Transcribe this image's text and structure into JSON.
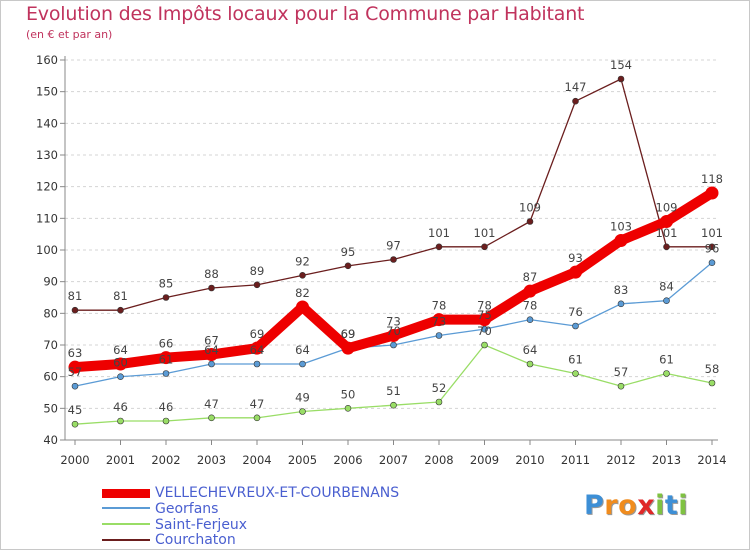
{
  "chart_data": {
    "type": "line",
    "title": "Evolution des Impôts locaux pour la Commune par Habitant",
    "subtitle": "(en € et par an)",
    "x": [
      "2000",
      "2001",
      "2002",
      "2003",
      "2004",
      "2005",
      "2006",
      "2007",
      "2008",
      "2009",
      "2010",
      "2011",
      "2012",
      "2013",
      "2014"
    ],
    "ylim": [
      40,
      160
    ],
    "yticks": [
      40,
      50,
      60,
      70,
      80,
      90,
      100,
      110,
      120,
      130,
      140,
      150,
      160
    ],
    "grid": "horizontal dashed",
    "series": [
      {
        "name": "Courchaton",
        "color": "#6b1e1e",
        "values": [
          81,
          81,
          85,
          88,
          89,
          92,
          95,
          97,
          101,
          101,
          109,
          147,
          154,
          101,
          101
        ]
      },
      {
        "name": "Saint-Ferjeux",
        "color": "#99dd66",
        "values": [
          45,
          46,
          46,
          47,
          47,
          49,
          50,
          51,
          52,
          70,
          64,
          61,
          57,
          61,
          58
        ]
      },
      {
        "name": "Georfans",
        "color": "#5b9bd5",
        "values": [
          57,
          60,
          61,
          64,
          64,
          64,
          69,
          70,
          73,
          75,
          78,
          76,
          83,
          84,
          96
        ]
      },
      {
        "name": "VELLECHEVREUX-ET-COURBENANS",
        "color": "#ee0000",
        "values": [
          63,
          64,
          66,
          67,
          69,
          82,
          69,
          73,
          78,
          78,
          87,
          93,
          103,
          109,
          118
        ]
      }
    ],
    "legend": [
      "VELLECHEVREUX-ET-COURBENANS",
      "Georfans",
      "Saint-Ferjeux",
      "Courchaton"
    ]
  },
  "logo": {
    "text": [
      "P",
      "r",
      "o",
      "x",
      "i",
      "t",
      "i"
    ],
    "colors": [
      "#3d8fd6",
      "#f08c1e",
      "#f08c1e",
      "#e02828",
      "#7fc241",
      "#3d8fd6",
      "#7fc241"
    ]
  }
}
